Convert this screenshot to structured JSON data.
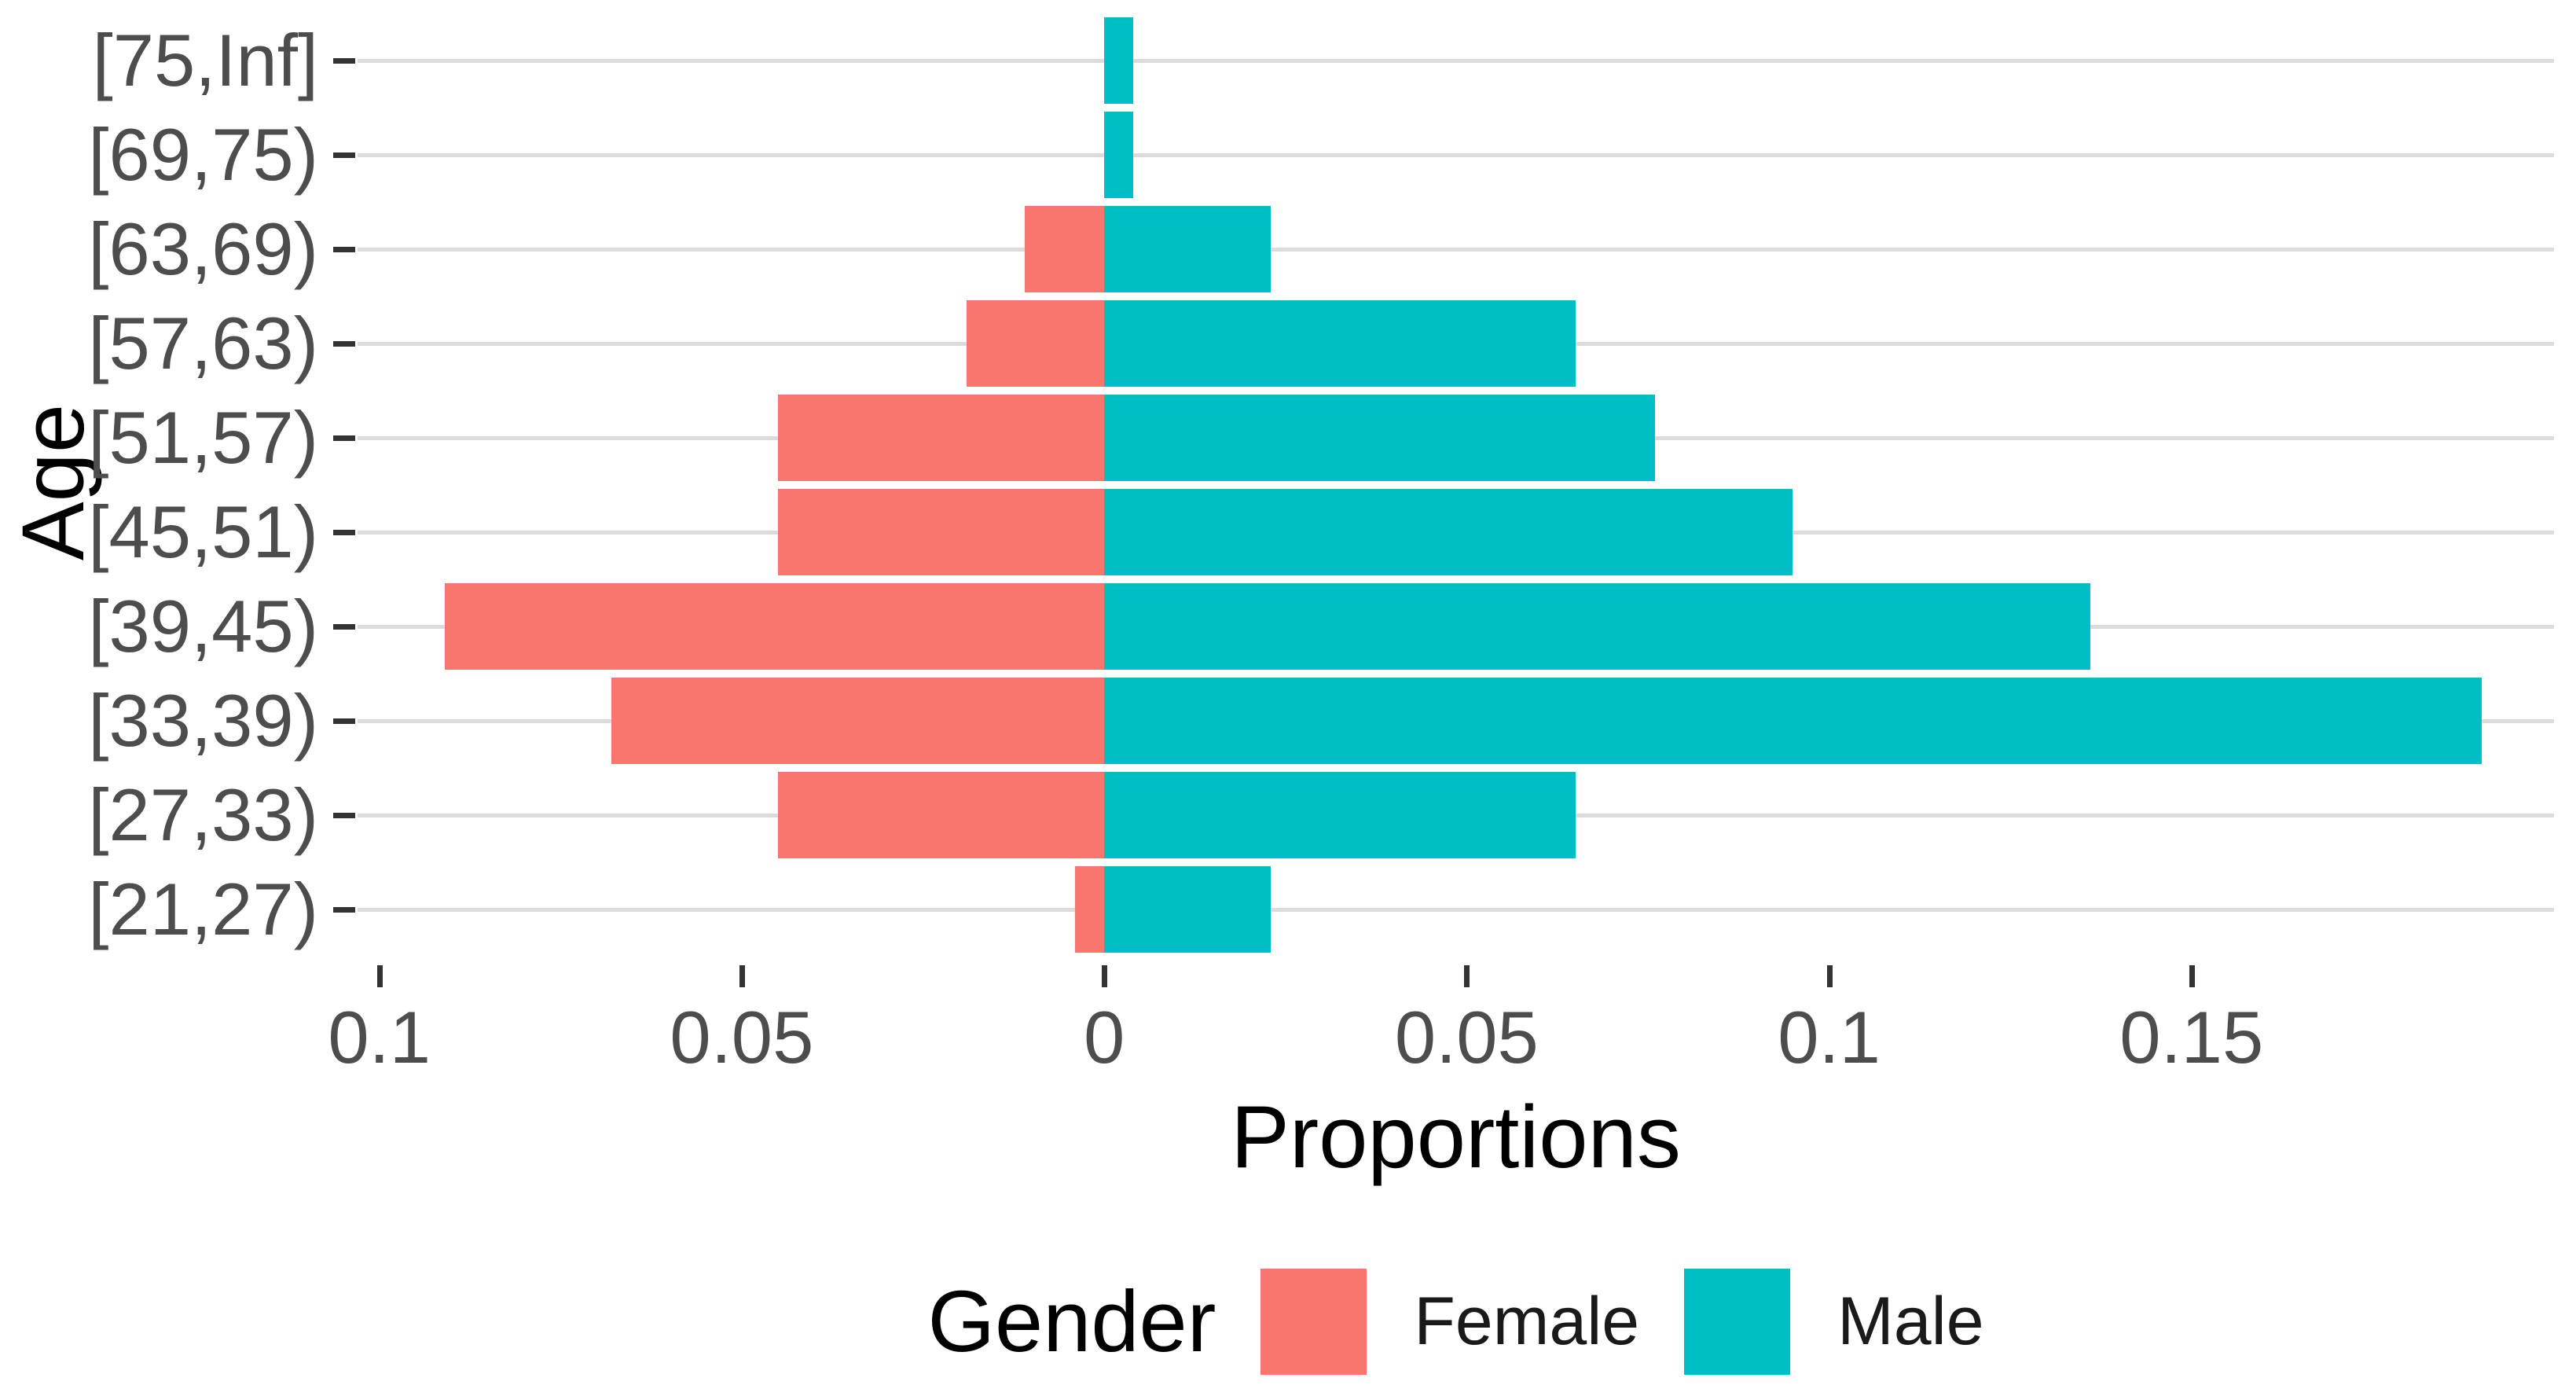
{
  "chart_data": {
    "type": "bar",
    "variant": "population-pyramid",
    "orientation": "horizontal",
    "title": "",
    "xlabel": "Proportions",
    "ylabel": "Age",
    "categories": [
      "[75,Inf]",
      "[69,75)",
      "[63,69)",
      "[57,63)",
      "[51,57)",
      "[45,51)",
      "[39,45)",
      "[33,39)",
      "[27,33)",
      "[21,27)"
    ],
    "series": [
      {
        "name": "Female",
        "color": "#F8766D",
        "direction": "left",
        "values": [
          0.0,
          0.0,
          0.011,
          0.019,
          0.045,
          0.045,
          0.091,
          0.068,
          0.045,
          0.004
        ]
      },
      {
        "name": "Male",
        "color": "#00BFC4",
        "direction": "right",
        "values": [
          0.004,
          0.004,
          0.023,
          0.065,
          0.076,
          0.095,
          0.136,
          0.19,
          0.065,
          0.023
        ]
      }
    ],
    "x_ticks": [
      {
        "value": -0.1,
        "label": "0.1"
      },
      {
        "value": -0.05,
        "label": "0.05"
      },
      {
        "value": 0,
        "label": "0"
      },
      {
        "value": 0.05,
        "label": "0.05"
      },
      {
        "value": 0.1,
        "label": "0.1"
      },
      {
        "value": 0.15,
        "label": "0.15"
      }
    ],
    "xlim": [
      -0.103,
      0.2
    ],
    "grid": "horizontal-only",
    "legend": {
      "title": "Gender",
      "position": "bottom",
      "entries": [
        "Female",
        "Male"
      ]
    },
    "colors": {
      "female": "#F8766D",
      "male": "#00BFC4",
      "gridline": "#dcdcdc",
      "axis_text": "#4d4d4d",
      "tick_mark": "#333333",
      "title_text": "#000000",
      "background": "#ffffff"
    }
  }
}
